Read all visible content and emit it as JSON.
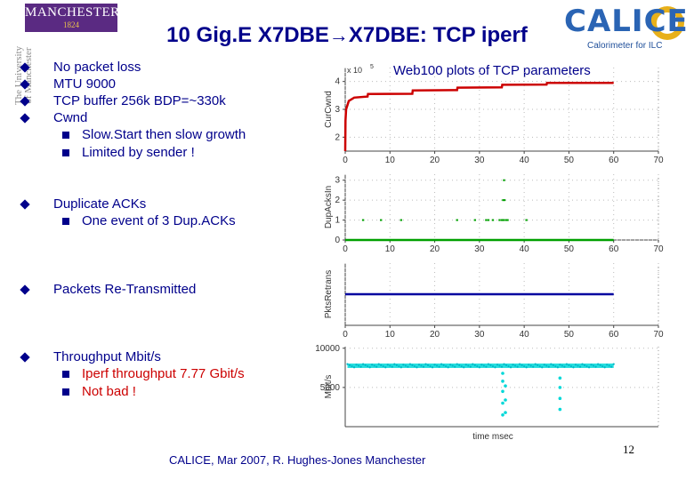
{
  "header": {
    "manchester_logo": {
      "name": "MANCHESTER",
      "year": "1824"
    },
    "university_text": [
      "The University",
      "of Manchester"
    ],
    "title_part1": "10 Gig.E X7DBE",
    "title_arrow": "→",
    "title_part2": "X7DBE: TCP iperf",
    "calice_logo": {
      "word": "CALICE",
      "subtitle": "Calorimeter for ILC"
    }
  },
  "bullets": {
    "group1": {
      "items": [
        "No packet loss",
        "MTU 9000",
        "TCP buffer 256k BDP=~330k",
        "Cwnd"
      ],
      "subitems": [
        "Slow.Start then slow growth",
        "Limited by sender !"
      ]
    },
    "group2": {
      "item": "Duplicate ACKs",
      "subitems": [
        "One event of 3 Dup.ACKs"
      ]
    },
    "group3": {
      "item": "Packets Re-Transmitted"
    },
    "group4": {
      "item": "Throughput Mbit/s",
      "subitems": [
        "Iperf throughput 7.77 Gbit/s",
        "Not bad !"
      ]
    }
  },
  "plots_title": "Web100 plots of TCP parameters",
  "footer": {
    "text": "CALICE, Mar 2007,  R. Hughes-Jones  Manchester",
    "page": "12"
  },
  "chart_data": [
    {
      "type": "line",
      "ylabel": "CurCwnd",
      "multiplier_label": "x 10",
      "multiplier_exp": "5",
      "x_ticks": [
        0,
        10,
        20,
        30,
        40,
        50,
        60,
        70
      ],
      "y_ticks": [
        2,
        3,
        4
      ],
      "ylim": [
        1.5,
        4.5
      ],
      "xlim": [
        0,
        70
      ],
      "color": "#cc0000",
      "series": [
        {
          "x": [
            0,
            0.05,
            0.2,
            0.8,
            2,
            5,
            5.1,
            15,
            15.1,
            25,
            25.1,
            35,
            35.1,
            45,
            45.1,
            60
          ],
          "y": [
            1.5,
            2.6,
            3.0,
            3.3,
            3.42,
            3.46,
            3.55,
            3.56,
            3.68,
            3.69,
            3.78,
            3.79,
            3.88,
            3.89,
            3.95,
            3.95
          ]
        }
      ]
    },
    {
      "type": "scatter",
      "ylabel": "DupAcksIn",
      "x_ticks": [
        0,
        10,
        20,
        30,
        40,
        50,
        60,
        70
      ],
      "y_ticks": [
        0,
        1,
        2,
        3
      ],
      "ylim": [
        0,
        3.3
      ],
      "xlim": [
        0,
        70
      ],
      "color": "#00a000",
      "baseline": 0,
      "series": [
        {
          "x": [
            4,
            8,
            12.5,
            25,
            29,
            31.5,
            32,
            33,
            34.5,
            35,
            35.2,
            35.5,
            36,
            36.3,
            40.5,
            35.3,
            35.6,
            35.5
          ],
          "y": [
            1,
            1,
            1,
            1,
            1,
            1,
            1,
            1,
            1,
            1,
            1,
            1,
            1,
            1,
            1,
            2,
            2,
            3
          ]
        }
      ]
    },
    {
      "type": "line",
      "ylabel": "PktsRetrans",
      "x_ticks": [
        0,
        10,
        20,
        30,
        40,
        50,
        60,
        70
      ],
      "y_ticks": [],
      "ylim": [
        -1,
        1
      ],
      "xlim": [
        0,
        70
      ],
      "color": "#0000a0",
      "series": [
        {
          "x": [
            0,
            60
          ],
          "y": [
            0,
            0
          ]
        }
      ]
    },
    {
      "type": "scatter",
      "ylabel": "Mbit/s",
      "xlabel": "time msec",
      "x_ticks": [],
      "y_ticks": [
        5000,
        10000
      ],
      "ylim": [
        0,
        10200
      ],
      "xlim": [
        0,
        70
      ],
      "color": "#00d8d8",
      "series": [
        {
          "base": 7770,
          "dips": [
            {
              "x": 35.2,
              "y": [
                1500,
                3000,
                4500,
                5800,
                6800
              ]
            },
            {
              "x": 35.8,
              "y": [
                1800,
                3400,
                5200
              ]
            },
            {
              "x": 48,
              "y": [
                2200,
                3600,
                5000,
                6200
              ]
            }
          ]
        }
      ]
    }
  ]
}
